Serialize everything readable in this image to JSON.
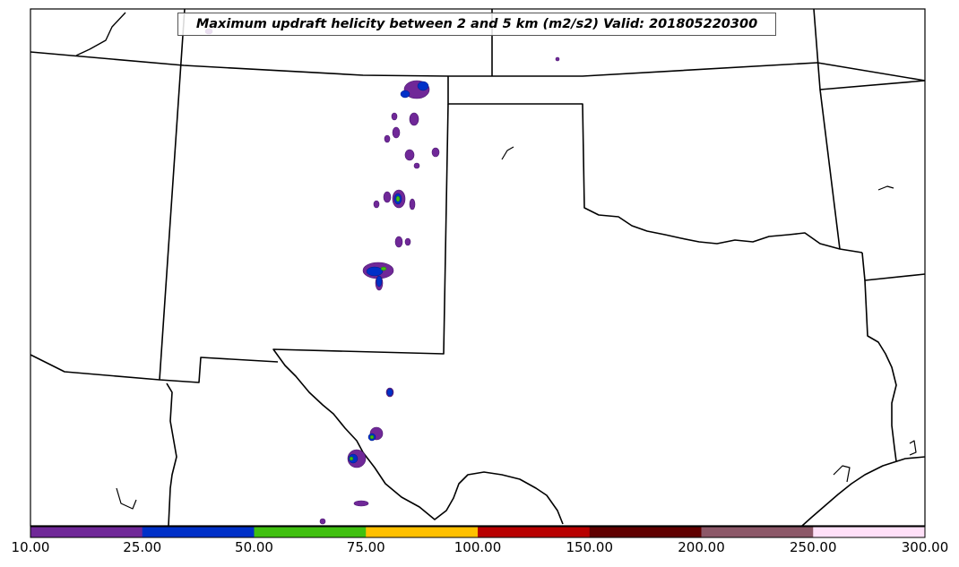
{
  "title": "Maximum updraft helicity between 2 and 5 km (m2/s2) Valid: 201805220300",
  "colorbar": {
    "tick_labels": [
      "10.00",
      "25.00",
      "50.00",
      "75.00",
      "100.00",
      "150.00",
      "200.00",
      "250.00",
      "300.00"
    ],
    "bins": [
      {
        "from": 10,
        "to": 25,
        "color": "#702898"
      },
      {
        "from": 25,
        "to": 50,
        "color": "#0030c8"
      },
      {
        "from": 50,
        "to": 75,
        "color": "#40c010"
      },
      {
        "from": 75,
        "to": 100,
        "color": "#ffc000"
      },
      {
        "from": 100,
        "to": 150,
        "color": "#b80000"
      },
      {
        "from": 150,
        "to": 200,
        "color": "#600000"
      },
      {
        "from": 200,
        "to": 250,
        "color": "#8c5868"
      },
      {
        "from": 250,
        "to": 300,
        "color": "#ffe0f8"
      }
    ]
  },
  "map": {
    "region": "Southern Plains (Texas, Oklahoma, New Mexico)",
    "features": [
      "state-borders",
      "coastline",
      "updraft-helicity-contours"
    ]
  }
}
